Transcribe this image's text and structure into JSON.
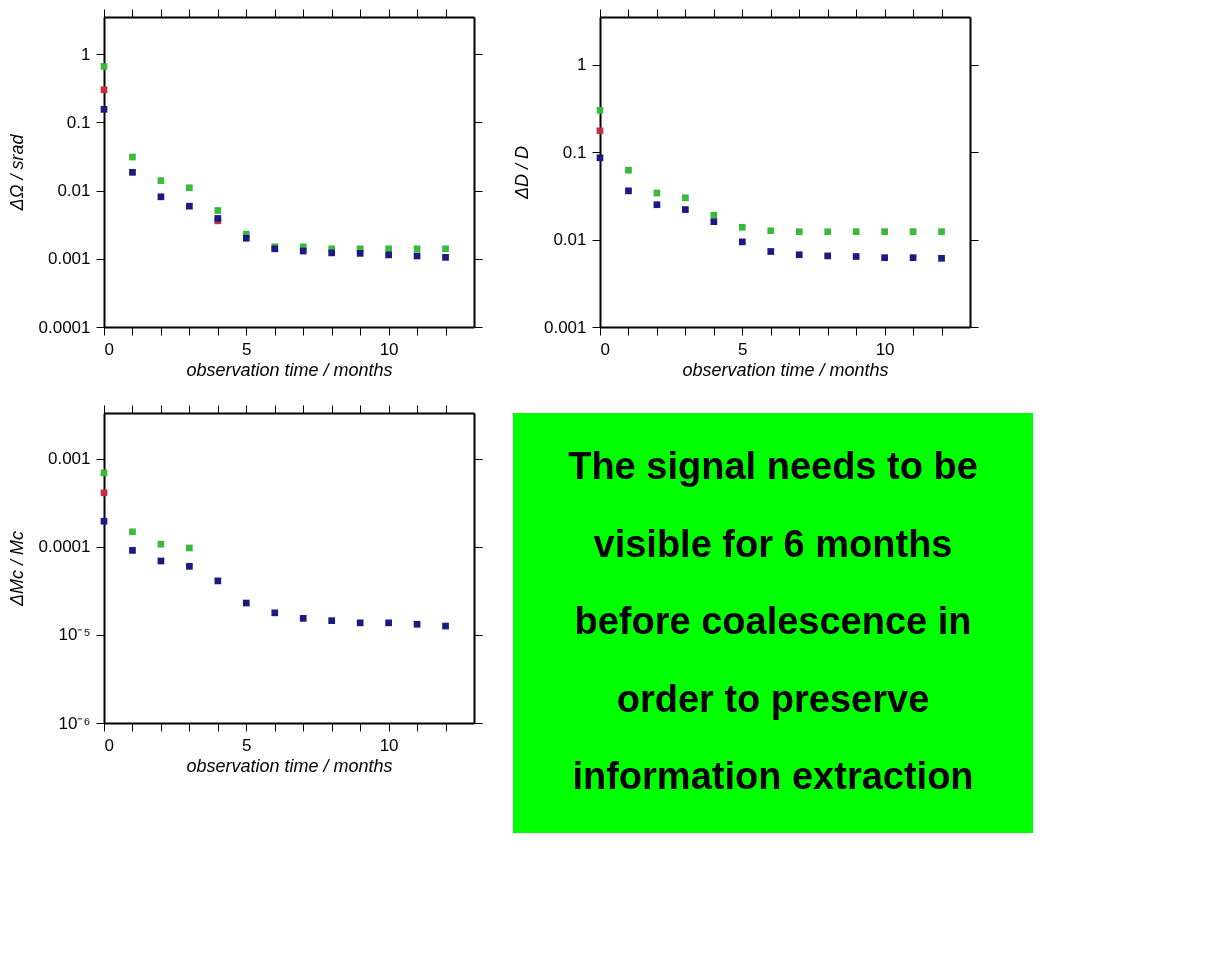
{
  "chart_data": [
    {
      "type": "scatter",
      "xlabel": "observation time / months",
      "ylabel": "ΔΩ / srad",
      "log": "y",
      "marker": "square",
      "grid": false,
      "xlim": [
        0,
        13
      ],
      "ylim": [
        0.0001,
        3.5
      ],
      "xticks": [
        0,
        {
          "value": 1,
          "label": null
        },
        {
          "value": 2,
          "label": null
        },
        {
          "value": 3,
          "label": null
        },
        {
          "value": 4,
          "label": null
        },
        5,
        {
          "value": 6,
          "label": null
        },
        {
          "value": 7,
          "label": null
        },
        {
          "value": 8,
          "label": null
        },
        {
          "value": 9,
          "label": null
        },
        10,
        {
          "value": 11,
          "label": null
        },
        {
          "value": 12,
          "label": null
        }
      ],
      "yticks": [
        0.0001,
        0.001,
        0.01,
        0.1,
        1
      ],
      "series": [
        {
          "color": "#3cb83c",
          "x": [
            0,
            1,
            2,
            3,
            4,
            5,
            6,
            7,
            8,
            9,
            10,
            11,
            12
          ],
          "values": [
            0.66,
            0.031,
            0.014,
            0.011,
            0.0051,
            0.0023,
            0.0015,
            0.0015,
            0.0014,
            0.0014,
            0.0014,
            0.0014,
            0.0014
          ]
        },
        {
          "color": "#c03040",
          "x": [
            0,
            4
          ],
          "values": [
            0.3,
            0.0036
          ]
        },
        {
          "color": "#1a1a80",
          "x": [
            0,
            1,
            2,
            3,
            4,
            5,
            6,
            7,
            8,
            9,
            10,
            11,
            12
          ],
          "values": [
            0.155,
            0.0185,
            0.0081,
            0.0059,
            0.0039,
            0.002,
            0.0014,
            0.0013,
            0.00122,
            0.0012,
            0.00114,
            0.0011,
            0.00105
          ]
        }
      ]
    },
    {
      "type": "scatter",
      "xlabel": "observation time / months",
      "ylabel": "ΔD / D",
      "log": "y",
      "marker": "square",
      "grid": false,
      "xlim": [
        0,
        13
      ],
      "ylim": [
        0.001,
        3.5
      ],
      "xticks": [
        0,
        {
          "value": 1,
          "label": null
        },
        {
          "value": 2,
          "label": null
        },
        {
          "value": 3,
          "label": null
        },
        {
          "value": 4,
          "label": null
        },
        5,
        {
          "value": 6,
          "label": null
        },
        {
          "value": 7,
          "label": null
        },
        {
          "value": 8,
          "label": null
        },
        {
          "value": 9,
          "label": null
        },
        10,
        {
          "value": 11,
          "label": null
        },
        {
          "value": 12,
          "label": null
        }
      ],
      "yticks": [
        0.001,
        0.01,
        0.1,
        1
      ],
      "series": [
        {
          "color": "#3cb83c",
          "x": [
            0,
            1,
            2,
            3,
            4,
            5,
            6,
            7,
            8,
            9,
            10,
            11,
            12
          ],
          "values": [
            0.3,
            0.062,
            0.034,
            0.03,
            0.019,
            0.0138,
            0.0126,
            0.0123,
            0.0123,
            0.0123,
            0.0123,
            0.0123,
            0.0123
          ]
        },
        {
          "color": "#c03040",
          "x": [
            0
          ],
          "values": [
            0.175
          ]
        },
        {
          "color": "#1a1a80",
          "x": [
            0,
            1,
            2,
            3,
            4,
            5,
            6,
            7,
            8,
            9,
            10,
            11,
            12
          ],
          "values": [
            0.086,
            0.036,
            0.025,
            0.022,
            0.016,
            0.0094,
            0.0073,
            0.0067,
            0.0065,
            0.0064,
            0.0062,
            0.0062,
            0.0061
          ]
        }
      ]
    },
    {
      "type": "scatter",
      "xlabel": "observation time / months",
      "ylabel": "ΔMc / Mc",
      "log": "y",
      "marker": "square",
      "grid": false,
      "xlim": [
        0,
        13
      ],
      "ylim": [
        1e-06,
        0.0033
      ],
      "xticks": [
        0,
        {
          "value": 1,
          "label": null
        },
        {
          "value": 2,
          "label": null
        },
        {
          "value": 3,
          "label": null
        },
        {
          "value": 4,
          "label": null
        },
        5,
        {
          "value": 6,
          "label": null
        },
        {
          "value": 7,
          "label": null
        },
        {
          "value": 8,
          "label": null
        },
        {
          "value": 9,
          "label": null
        },
        10,
        {
          "value": 11,
          "label": null
        },
        {
          "value": 12,
          "label": null
        }
      ],
      "yticks": [
        {
          "value": 1e-06,
          "label": "10⁻⁶"
        },
        {
          "value": 1e-05,
          "label": "10⁻⁵"
        },
        0.0001,
        0.001
      ],
      "series": [
        {
          "color": "#3cb83c",
          "x": [
            0,
            1,
            2,
            3
          ],
          "values": [
            0.00069,
            0.000148,
            0.000107,
            9.7e-05
          ]
        },
        {
          "color": "#c03040",
          "x": [
            0
          ],
          "values": [
            0.00041
          ]
        },
        {
          "color": "#1a1a80",
          "x": [
            0,
            1,
            2,
            3,
            4,
            5,
            6,
            7,
            8,
            9,
            10,
            11,
            12
          ],
          "values": [
            0.000195,
            9.1e-05,
            6.9e-05,
            6e-05,
            4.1e-05,
            2.3e-05,
            1.78e-05,
            1.54e-05,
            1.45e-05,
            1.37e-05,
            1.37e-05,
            1.32e-05,
            1.26e-05
          ]
        }
      ]
    },
    {
      "type": "other",
      "color": "#00ff00",
      "annotations": [
        "The signal needs to be",
        "visible for 6 months",
        "before coalescence in",
        "order to preserve",
        "information extraction"
      ]
    }
  ]
}
